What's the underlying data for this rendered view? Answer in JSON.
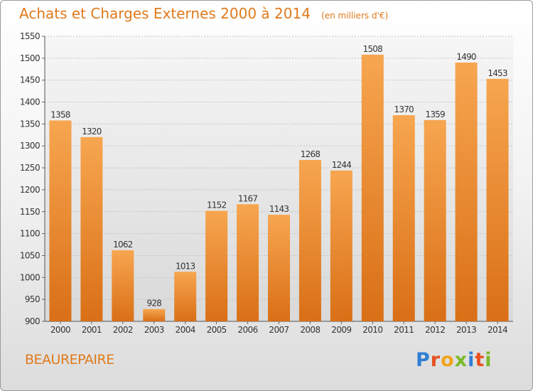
{
  "title": "Achats et Charges Externes 2000 à 2014",
  "subtitle": "(en milliers d'€)",
  "commune": "BEAUREPAIRE",
  "logo": {
    "letters": [
      "P",
      "r",
      "o",
      "x",
      "i",
      "t",
      "i"
    ],
    "colors": [
      "#2f7fd3",
      "#e8501f",
      "#f2a31b",
      "#7ab929",
      "#2f7fd3",
      "#e8501f",
      "#7ab929"
    ]
  },
  "colors": {
    "bar": "#ee8a2d",
    "title": "#e07a1c"
  },
  "chart_data": {
    "type": "bar",
    "title": "Achats et Charges Externes 2000 à 2014",
    "categories": [
      "2000",
      "2001",
      "2002",
      "2003",
      "2004",
      "2005",
      "2006",
      "2007",
      "2008",
      "2009",
      "2010",
      "2011",
      "2012",
      "2013",
      "2014"
    ],
    "values": [
      1358,
      1320,
      1062,
      928,
      1013,
      1152,
      1167,
      1143,
      1268,
      1244,
      1508,
      1370,
      1359,
      1490,
      1453
    ],
    "ylim": [
      900,
      1550
    ],
    "yticks": [
      900,
      950,
      1000,
      1050,
      1100,
      1150,
      1200,
      1250,
      1300,
      1350,
      1400,
      1450,
      1500,
      1550
    ],
    "grid": true,
    "xlabel": "",
    "ylabel": ""
  }
}
